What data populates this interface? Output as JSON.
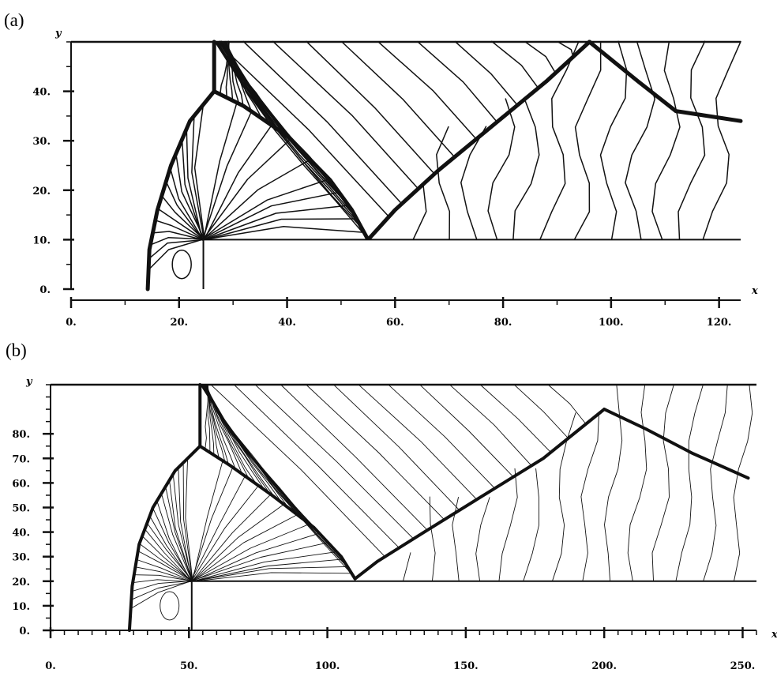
{
  "chart_data": [
    {
      "type": "contour",
      "panel_label": "(a)",
      "xlabel": "x",
      "ylabel": "y",
      "xlim": [
        0,
        124
      ],
      "ylim": [
        0,
        50
      ],
      "x_ticks": [
        "0.",
        "20.",
        "40.",
        "60.",
        "80.",
        "100.",
        "120."
      ],
      "y_ticks": [
        "0.",
        "10.",
        "20.",
        "30.",
        "40."
      ],
      "x_tick_values": [
        0,
        20,
        40,
        60,
        80,
        100,
        120
      ],
      "y_tick_values": [
        0,
        10,
        20,
        30,
        40
      ],
      "step": {
        "corner_x": 24.5,
        "height": 10
      },
      "features": {
        "incident_shock": {
          "x": 26.5,
          "y_from": 40,
          "y_to": 50
        },
        "triple_point": [
          26.5,
          40
        ],
        "bow_shock": [
          [
            26.5,
            40
          ],
          [
            22,
            34
          ],
          [
            18.5,
            25
          ],
          [
            16,
            16
          ],
          [
            14.5,
            8
          ],
          [
            14.2,
            0
          ]
        ],
        "reflected_shock": [
          [
            26.5,
            40
          ],
          [
            32,
            37
          ],
          [
            40,
            31
          ],
          [
            48,
            22
          ],
          [
            52,
            16
          ],
          [
            55,
            10
          ]
        ],
        "reflected_shock_from_floor": [
          [
            55,
            10
          ],
          [
            60,
            16
          ],
          [
            68,
            24
          ],
          [
            78,
            33
          ],
          [
            88,
            42
          ],
          [
            96,
            50
          ]
        ],
        "second_reflection": [
          [
            96,
            50
          ],
          [
            105,
            42
          ],
          [
            112,
            36
          ],
          [
            124,
            34
          ]
        ],
        "expansion_center": [
          24.5,
          10
        ]
      },
      "grid": false
    },
    {
      "type": "contour",
      "panel_label": "(b)",
      "xlabel": "x",
      "ylabel": "y",
      "xlim": [
        0,
        255
      ],
      "ylim": [
        0,
        100
      ],
      "x_ticks": [
        "0.",
        "50.",
        "100.",
        "150.",
        "200.",
        "250."
      ],
      "y_ticks": [
        "0.",
        "10.",
        "20.",
        "30.",
        "40.",
        "50.",
        "60.",
        "70.",
        "80."
      ],
      "x_tick_values": [
        0,
        50,
        100,
        150,
        200,
        250
      ],
      "y_tick_values": [
        0,
        10,
        20,
        30,
        40,
        50,
        60,
        70,
        80
      ],
      "step": {
        "corner_x": 51,
        "height": 20
      },
      "features": {
        "incident_shock": {
          "x": 54,
          "y_from": 75,
          "y_to": 100
        },
        "triple_point": [
          54,
          75
        ],
        "bow_shock": [
          [
            54,
            75
          ],
          [
            45,
            65
          ],
          [
            37,
            50
          ],
          [
            32,
            35
          ],
          [
            29.5,
            18
          ],
          [
            28.5,
            0
          ]
        ],
        "reflected_shock": [
          [
            54,
            75
          ],
          [
            65,
            67
          ],
          [
            80,
            55
          ],
          [
            95,
            42
          ],
          [
            105,
            30
          ],
          [
            110,
            21
          ]
        ],
        "reflected_shock_from_floor": [
          [
            110,
            21
          ],
          [
            118,
            28
          ],
          [
            135,
            40
          ],
          [
            155,
            54
          ],
          [
            178,
            70
          ],
          [
            200,
            90
          ]
        ],
        "second_reflection": [
          [
            200,
            90
          ],
          [
            215,
            82
          ],
          [
            232,
            72
          ],
          [
            252,
            62
          ]
        ],
        "expansion_center": [
          51,
          20
        ]
      },
      "grid": false
    }
  ]
}
